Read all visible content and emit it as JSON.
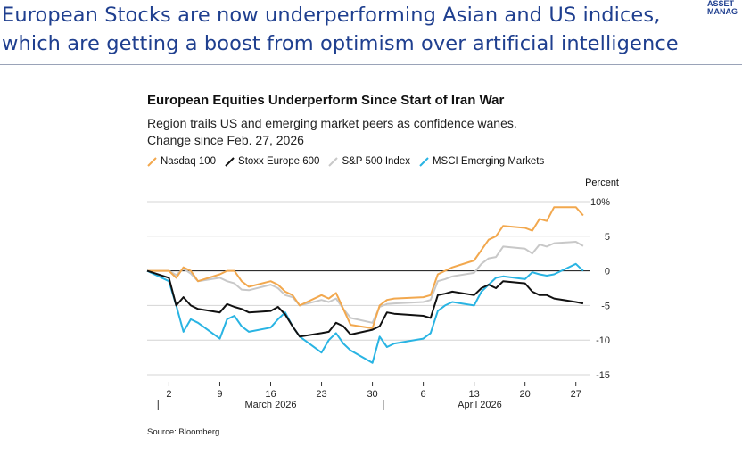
{
  "slide": {
    "title": "European Stocks are now underperforming Asian and US indices, which are getting a boost from optimism over artificial intelligence",
    "logo_line1": "ASSET",
    "logo_line2": "MANAG"
  },
  "chart_data": {
    "type": "line",
    "title": "European Equities Underperform Since Start of Iran War",
    "subtitle": "Region trails US and emerging market peers as confidence wanes.",
    "subtitle2": "Change since Feb. 27, 2026",
    "unit_label": "Percent",
    "ylim": [
      -15,
      10
    ],
    "yticks": [
      10,
      5,
      0,
      -5,
      -10,
      -15
    ],
    "ytick_labels": [
      "10%",
      "5",
      "0",
      "-5",
      "-10",
      "-15"
    ],
    "x_range": [
      "2026-02-27",
      "2026-04-29"
    ],
    "xticks": [
      {
        "date": "2026-03-02",
        "label": "2"
      },
      {
        "date": "2026-03-09",
        "label": "9"
      },
      {
        "date": "2026-03-16",
        "label": "16"
      },
      {
        "date": "2026-03-23",
        "label": "23"
      },
      {
        "date": "2026-03-30",
        "label": "30"
      },
      {
        "date": "2026-04-06",
        "label": "6"
      },
      {
        "date": "2026-04-13",
        "label": "13"
      },
      {
        "date": "2026-04-20",
        "label": "20"
      },
      {
        "date": "2026-04-27",
        "label": "27"
      }
    ],
    "months": [
      {
        "label": "March 2026",
        "start": "2026-03-01",
        "end": "2026-03-31"
      },
      {
        "label": "April 2026",
        "start": "2026-04-01",
        "end": "2026-04-29"
      }
    ],
    "grid": true,
    "legend_position": "top-left",
    "series": [
      {
        "name": "S&P 500 Index",
        "color": "#c8c8c8",
        "points": [
          [
            "2026-02-27",
            0
          ],
          [
            "2026-03-02",
            0
          ],
          [
            "2026-03-03",
            -0.6
          ],
          [
            "2026-03-04",
            0.3
          ],
          [
            "2026-03-05",
            -0.4
          ],
          [
            "2026-03-06",
            -1.5
          ],
          [
            "2026-03-09",
            -1.0
          ],
          [
            "2026-03-10",
            -1.5
          ],
          [
            "2026-03-11",
            -1.8
          ],
          [
            "2026-03-12",
            -2.7
          ],
          [
            "2026-03-13",
            -2.8
          ],
          [
            "2026-03-16",
            -2.0
          ],
          [
            "2026-03-17",
            -2.5
          ],
          [
            "2026-03-18",
            -3.5
          ],
          [
            "2026-03-19",
            -3.8
          ],
          [
            "2026-03-20",
            -5.0
          ],
          [
            "2026-03-23",
            -4.2
          ],
          [
            "2026-03-24",
            -4.5
          ],
          [
            "2026-03-25",
            -4.0
          ],
          [
            "2026-03-26",
            -5.5
          ],
          [
            "2026-03-27",
            -6.8
          ],
          [
            "2026-03-30",
            -7.5
          ],
          [
            "2026-03-31",
            -5.2
          ],
          [
            "2026-04-01",
            -4.8
          ],
          [
            "2026-04-02",
            -4.7
          ],
          [
            "2026-04-06",
            -4.5
          ],
          [
            "2026-04-07",
            -4.2
          ],
          [
            "2026-04-08",
            -1.5
          ],
          [
            "2026-04-09",
            -1.2
          ],
          [
            "2026-04-10",
            -0.8
          ],
          [
            "2026-04-13",
            -0.3
          ],
          [
            "2026-04-14",
            1.0
          ],
          [
            "2026-04-15",
            1.8
          ],
          [
            "2026-04-16",
            2.0
          ],
          [
            "2026-04-17",
            3.5
          ],
          [
            "2026-04-20",
            3.2
          ],
          [
            "2026-04-21",
            2.5
          ],
          [
            "2026-04-22",
            3.8
          ],
          [
            "2026-04-23",
            3.5
          ],
          [
            "2026-04-24",
            4.0
          ],
          [
            "2026-04-27",
            4.2
          ],
          [
            "2026-04-28",
            3.6
          ]
        ]
      },
      {
        "name": "Nasdaq 100",
        "color": "#f2a84e",
        "points": [
          [
            "2026-02-27",
            0
          ],
          [
            "2026-03-02",
            0
          ],
          [
            "2026-03-03",
            -1.0
          ],
          [
            "2026-03-04",
            0.5
          ],
          [
            "2026-03-05",
            0
          ],
          [
            "2026-03-06",
            -1.5
          ],
          [
            "2026-03-09",
            -0.5
          ],
          [
            "2026-03-10",
            0
          ],
          [
            "2026-03-11",
            0
          ],
          [
            "2026-03-12",
            -1.5
          ],
          [
            "2026-03-13",
            -2.3
          ],
          [
            "2026-03-16",
            -1.5
          ],
          [
            "2026-03-17",
            -2.0
          ],
          [
            "2026-03-18",
            -3.0
          ],
          [
            "2026-03-19",
            -3.5
          ],
          [
            "2026-03-20",
            -5.0
          ],
          [
            "2026-03-23",
            -3.5
          ],
          [
            "2026-03-24",
            -4.0
          ],
          [
            "2026-03-25",
            -3.2
          ],
          [
            "2026-03-26",
            -5.5
          ],
          [
            "2026-03-27",
            -7.8
          ],
          [
            "2026-03-30",
            -8.3
          ],
          [
            "2026-03-31",
            -5.0
          ],
          [
            "2026-04-01",
            -4.2
          ],
          [
            "2026-04-02",
            -4.0
          ],
          [
            "2026-04-06",
            -3.8
          ],
          [
            "2026-04-07",
            -3.5
          ],
          [
            "2026-04-08",
            -0.5
          ],
          [
            "2026-04-09",
            0
          ],
          [
            "2026-04-10",
            0.5
          ],
          [
            "2026-04-13",
            1.5
          ],
          [
            "2026-04-14",
            3.0
          ],
          [
            "2026-04-15",
            4.5
          ],
          [
            "2026-04-16",
            5.0
          ],
          [
            "2026-04-17",
            6.5
          ],
          [
            "2026-04-20",
            6.2
          ],
          [
            "2026-04-21",
            5.8
          ],
          [
            "2026-04-22",
            7.5
          ],
          [
            "2026-04-23",
            7.2
          ],
          [
            "2026-04-24",
            9.2
          ],
          [
            "2026-04-27",
            9.2
          ],
          [
            "2026-04-28",
            8.0
          ]
        ]
      },
      {
        "name": "MSCI Emerging Markets",
        "color": "#29b4e3",
        "points": [
          [
            "2026-02-27",
            0
          ],
          [
            "2026-03-02",
            -1.5
          ],
          [
            "2026-03-03",
            -5.0
          ],
          [
            "2026-03-04",
            -8.8
          ],
          [
            "2026-03-05",
            -7.0
          ],
          [
            "2026-03-06",
            -7.5
          ],
          [
            "2026-03-09",
            -9.8
          ],
          [
            "2026-03-10",
            -7.0
          ],
          [
            "2026-03-11",
            -6.5
          ],
          [
            "2026-03-12",
            -8.0
          ],
          [
            "2026-03-13",
            -8.8
          ],
          [
            "2026-03-16",
            -8.2
          ],
          [
            "2026-03-17",
            -7.0
          ],
          [
            "2026-03-18",
            -6.0
          ],
          [
            "2026-03-19",
            -8.0
          ],
          [
            "2026-03-20",
            -9.5
          ],
          [
            "2026-03-23",
            -11.8
          ],
          [
            "2026-03-24",
            -10.0
          ],
          [
            "2026-03-25",
            -9.0
          ],
          [
            "2026-03-26",
            -10.5
          ],
          [
            "2026-03-27",
            -11.5
          ],
          [
            "2026-03-30",
            -13.3
          ],
          [
            "2026-03-31",
            -9.5
          ],
          [
            "2026-04-01",
            -11.0
          ],
          [
            "2026-04-02",
            -10.5
          ],
          [
            "2026-04-06",
            -9.8
          ],
          [
            "2026-04-07",
            -9.0
          ],
          [
            "2026-04-08",
            -5.8
          ],
          [
            "2026-04-09",
            -5.0
          ],
          [
            "2026-04-10",
            -4.5
          ],
          [
            "2026-04-13",
            -5.0
          ],
          [
            "2026-04-14",
            -3.0
          ],
          [
            "2026-04-15",
            -2.0
          ],
          [
            "2026-04-16",
            -1.0
          ],
          [
            "2026-04-17",
            -0.8
          ],
          [
            "2026-04-20",
            -1.2
          ],
          [
            "2026-04-21",
            -0.2
          ],
          [
            "2026-04-22",
            -0.5
          ],
          [
            "2026-04-23",
            -0.7
          ],
          [
            "2026-04-24",
            -0.5
          ],
          [
            "2026-04-27",
            1.0
          ],
          [
            "2026-04-28",
            0
          ]
        ]
      },
      {
        "name": "Stoxx Europe 600",
        "color": "#111111",
        "points": [
          [
            "2026-02-27",
            0
          ],
          [
            "2026-03-02",
            -1.0
          ],
          [
            "2026-03-03",
            -5.0
          ],
          [
            "2026-03-04",
            -3.8
          ],
          [
            "2026-03-05",
            -5.0
          ],
          [
            "2026-03-06",
            -5.5
          ],
          [
            "2026-03-09",
            -6.0
          ],
          [
            "2026-03-10",
            -4.8
          ],
          [
            "2026-03-11",
            -5.2
          ],
          [
            "2026-03-12",
            -5.5
          ],
          [
            "2026-03-13",
            -6.0
          ],
          [
            "2026-03-16",
            -5.8
          ],
          [
            "2026-03-17",
            -5.2
          ],
          [
            "2026-03-18",
            -6.3
          ],
          [
            "2026-03-19",
            -8.0
          ],
          [
            "2026-03-20",
            -9.5
          ],
          [
            "2026-03-23",
            -9.0
          ],
          [
            "2026-03-24",
            -8.8
          ],
          [
            "2026-03-25",
            -7.5
          ],
          [
            "2026-03-26",
            -8.0
          ],
          [
            "2026-03-27",
            -9.2
          ],
          [
            "2026-03-30",
            -8.5
          ],
          [
            "2026-03-31",
            -8.0
          ],
          [
            "2026-04-01",
            -6.0
          ],
          [
            "2026-04-02",
            -6.2
          ],
          [
            "2026-04-06",
            -6.5
          ],
          [
            "2026-04-07",
            -6.8
          ],
          [
            "2026-04-08",
            -3.5
          ],
          [
            "2026-04-09",
            -3.3
          ],
          [
            "2026-04-10",
            -3.0
          ],
          [
            "2026-04-13",
            -3.5
          ],
          [
            "2026-04-14",
            -2.5
          ],
          [
            "2026-04-15",
            -2.0
          ],
          [
            "2026-04-16",
            -2.5
          ],
          [
            "2026-04-17",
            -1.5
          ],
          [
            "2026-04-20",
            -1.8
          ],
          [
            "2026-04-21",
            -3.0
          ],
          [
            "2026-04-22",
            -3.5
          ],
          [
            "2026-04-23",
            -3.5
          ],
          [
            "2026-04-24",
            -4.0
          ],
          [
            "2026-04-27",
            -4.5
          ],
          [
            "2026-04-28",
            -4.7
          ]
        ]
      }
    ],
    "legend_order": [
      "Nasdaq 100",
      "Stoxx Europe 600",
      "S&P 500 Index",
      "MSCI Emerging Markets"
    ],
    "source": "Source: Bloomberg"
  }
}
